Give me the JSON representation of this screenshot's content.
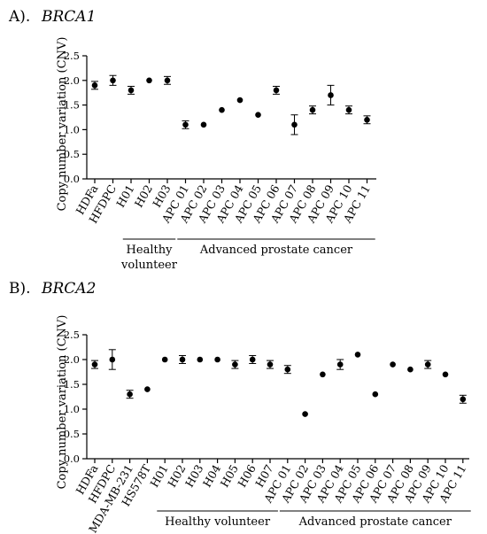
{
  "chart_data": [
    {
      "type": "scatter",
      "panel_label": "A).",
      "title": "BRCA1",
      "ylabel": "Copy number variation (CNV)",
      "ylim": [
        0,
        2.5
      ],
      "yticks": [
        "0.0",
        "0.5",
        "1.0",
        "1.5",
        "2.0",
        "2.5"
      ],
      "categories": [
        "HDFa",
        "HFDPC",
        "H01",
        "H02",
        "H03",
        "APC 01",
        "APC 02",
        "APC 03",
        "APC 04",
        "APC 05",
        "APC 06",
        "APC 07",
        "APC 08",
        "APC 09",
        "APC 10",
        "APC 11"
      ],
      "values": [
        1.9,
        2.0,
        1.8,
        2.0,
        2.0,
        1.1,
        1.1,
        1.4,
        1.6,
        1.3,
        1.8,
        1.1,
        1.4,
        1.7,
        1.4,
        1.2
      ],
      "errors": [
        0.08,
        0.1,
        0.08,
        0,
        0.08,
        0.08,
        0,
        0,
        0,
        0,
        0.08,
        0.2,
        0.08,
        0.2,
        0.08,
        0.08
      ],
      "groups": [
        {
          "label_lines": [
            "Healthy",
            "volunteer"
          ],
          "from": 2,
          "to": 4
        },
        {
          "label_lines": [
            "Advanced prostate cancer"
          ],
          "from": 5,
          "to": 15
        }
      ]
    },
    {
      "type": "scatter",
      "panel_label": "B).",
      "title": "BRCA2",
      "ylabel": "Copy number variation (CNV)",
      "ylim": [
        0,
        2.5
      ],
      "yticks": [
        "0.0",
        "0.5",
        "1.0",
        "1.5",
        "2.0",
        "2.5"
      ],
      "categories": [
        "HDFa",
        "HFDPC",
        "MDA-MB-231",
        "HS578T",
        "H01",
        "H02",
        "H03",
        "H04",
        "H05",
        "H06",
        "H07",
        "APC 01",
        "APC 02",
        "APC 03",
        "APC 04",
        "APC 05",
        "APC 06",
        "APC 07",
        "APC 08",
        "APC 09",
        "APC 10",
        "APC 11"
      ],
      "values": [
        1.9,
        2.0,
        1.3,
        1.4,
        2.0,
        2.0,
        2.0,
        2.0,
        1.9,
        2.0,
        1.9,
        1.8,
        0.9,
        1.7,
        1.9,
        2.1,
        1.3,
        1.9,
        1.8,
        1.9,
        1.7,
        1.2
      ],
      "errors": [
        0.08,
        0.2,
        0.08,
        0,
        0,
        0.08,
        0,
        0,
        0.08,
        0.08,
        0.08,
        0.08,
        0,
        0,
        0.1,
        0,
        0,
        0,
        0,
        0.08,
        0,
        0.08
      ],
      "groups": [
        {
          "label_lines": [
            "Healthy volunteer"
          ],
          "from": 4,
          "to": 10
        },
        {
          "label_lines": [
            "Advanced prostate cancer"
          ],
          "from": 11,
          "to": 21
        }
      ]
    }
  ]
}
